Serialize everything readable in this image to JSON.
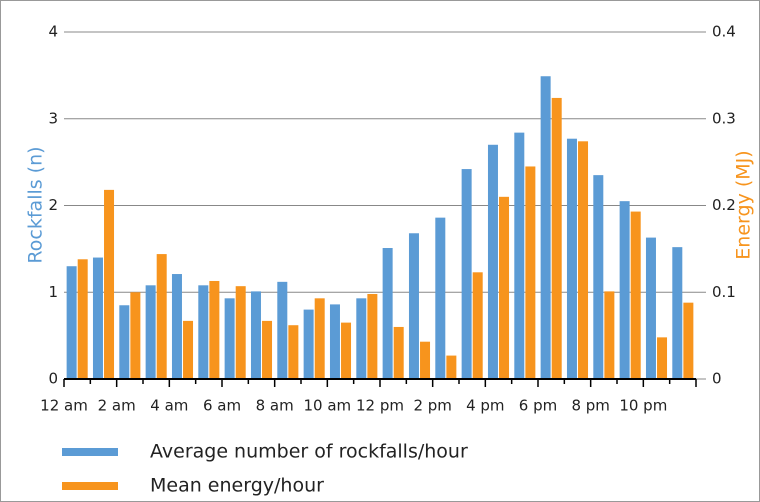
{
  "chart_data": {
    "type": "bar",
    "categories": [
      "12 am",
      null,
      "2 am",
      null,
      "4 am",
      null,
      "6 am",
      null,
      "8 am",
      null,
      "10 am",
      null,
      "12 pm",
      null,
      "2 pm",
      null,
      "4 pm",
      null,
      "6 pm",
      null,
      "8 pm",
      null,
      "10 pm",
      null
    ],
    "series": [
      {
        "name": "Average number of rockfalls/hour",
        "color": "#5b9bd5",
        "axis": "y",
        "values": [
          1.3,
          1.4,
          0.85,
          1.08,
          1.21,
          1.08,
          0.93,
          1.01,
          1.12,
          0.8,
          0.86,
          0.93,
          1.51,
          1.68,
          1.86,
          2.42,
          2.7,
          2.84,
          3.49,
          2.77,
          2.35,
          2.05,
          1.63,
          1.52
        ]
      },
      {
        "name": "Mean energy/hour",
        "color": "#f7941d",
        "axis": "y2",
        "values": [
          0.138,
          0.218,
          0.1,
          0.144,
          0.067,
          0.113,
          0.107,
          0.067,
          0.062,
          0.093,
          0.065,
          0.098,
          0.06,
          0.043,
          0.027,
          0.123,
          0.21,
          0.245,
          0.324,
          0.274,
          0.101,
          0.193,
          0.048,
          0.088
        ]
      }
    ],
    "ylabel": "Rockfalls (n)",
    "y2label": "Energy (MJ)",
    "ylim": [
      0,
      4
    ],
    "yticks": [
      0,
      1,
      2,
      3,
      4
    ],
    "y2lim": [
      0,
      0.4
    ],
    "y2ticks": [
      0,
      0.1,
      0.2,
      0.3,
      0.4
    ],
    "grid": true,
    "legend": "bottom"
  }
}
